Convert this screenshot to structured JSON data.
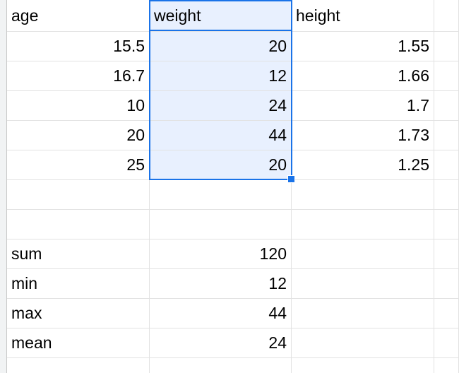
{
  "sheet": {
    "headers": [
      "age",
      "weight",
      "height"
    ],
    "rows": [
      [
        "15.5",
        "20",
        "1.55"
      ],
      [
        "16.7",
        "12",
        "1.66"
      ],
      [
        "10",
        "24",
        "1.7"
      ],
      [
        "20",
        "44",
        "1.73"
      ],
      [
        "25",
        "20",
        "1.25"
      ]
    ],
    "summary": [
      {
        "label": "sum",
        "value": "120"
      },
      {
        "label": "min",
        "value": "12"
      },
      {
        "label": "max",
        "value": "44"
      },
      {
        "label": "mean",
        "value": "24"
      }
    ]
  },
  "selection": {
    "active_cell": "weight",
    "range": "weight column, rows 1–6"
  },
  "colors": {
    "selection_fill": "#e8f0fe",
    "selection_border": "#1a73e8",
    "gridline": "#e2e2e2"
  }
}
